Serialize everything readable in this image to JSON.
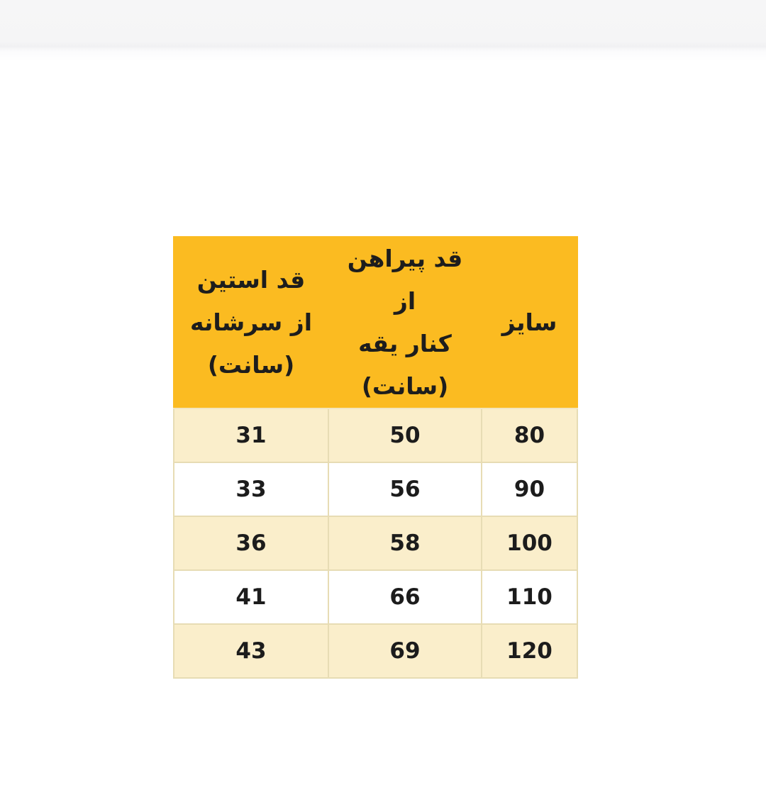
{
  "page": {
    "background_color": "#ffffff",
    "top_band_color": "#f5f5f6"
  },
  "size_chart": {
    "columns": [
      {
        "key": "size",
        "label": "سایز"
      },
      {
        "key": "shirt_length",
        "label": "قد پیراهن از\nکنار یقه\n(سانت)"
      },
      {
        "key": "sleeve_length",
        "label": "قد استین\nاز سرشانه\n(سانت)"
      }
    ],
    "rows": [
      {
        "size": "80",
        "shirt_length": "50",
        "sleeve_length": "31"
      },
      {
        "size": "90",
        "shirt_length": "56",
        "sleeve_length": "33"
      },
      {
        "size": "100",
        "shirt_length": "58",
        "sleeve_length": "36"
      },
      {
        "size": "110",
        "shirt_length": "66",
        "sleeve_length": "41"
      },
      {
        "size": "120",
        "shirt_length": "69",
        "sleeve_length": "43"
      }
    ],
    "colors": {
      "header_bg": "#fbbb21",
      "row_alt_bg": "#faeecb",
      "row_bg": "#ffffff",
      "cell_border": "#e7dcb4",
      "text": "#1c1c1c"
    }
  },
  "chart_data": {
    "type": "table",
    "title": "",
    "direction": "rtl",
    "columns": [
      "سایز",
      "قد پیراهن از کنار یقه (سانت)",
      "قد استین از سرشانه (سانت)"
    ],
    "rows": [
      [
        80,
        50,
        31
      ],
      [
        90,
        56,
        33
      ],
      [
        100,
        58,
        36
      ],
      [
        110,
        66,
        41
      ],
      [
        120,
        69,
        43
      ]
    ]
  }
}
